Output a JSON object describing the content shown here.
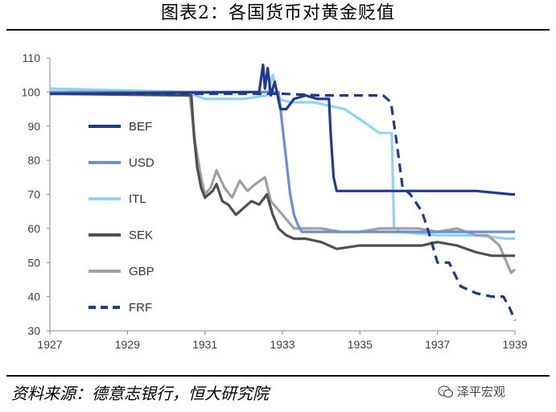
{
  "header": {
    "title": "图表2：各国货币对黄金贬值"
  },
  "footer": {
    "source": "资料来源：德意志银行，恒大研究院",
    "watermark": "泽平宏观"
  },
  "icons": {
    "watermark_icon": "wechat-icon"
  },
  "chart_data": {
    "type": "line",
    "xlim": [
      1927,
      1939
    ],
    "ylim": [
      30,
      110
    ],
    "xticks": [
      "1927",
      "1929",
      "1931",
      "1933",
      "1935",
      "1937",
      "1939"
    ],
    "yticks": [
      "30",
      "40",
      "50",
      "60",
      "70",
      "80",
      "90",
      "100",
      "110"
    ],
    "grid": false,
    "legend_position": "left",
    "series": [
      {
        "name": "BEF",
        "color": "#1F3A93",
        "dash": "solid",
        "x": [
          1927,
          1932.4,
          1932.5,
          1932.55,
          1932.62,
          1932.7,
          1932.8,
          1932.95,
          1933.1,
          1933.3,
          1933.6,
          1933.9,
          1934.2,
          1934.25,
          1934.32,
          1934.4,
          1935,
          1936,
          1937,
          1938,
          1938.9,
          1939
        ],
        "y": [
          99.5,
          100,
          108,
          101,
          107,
          99,
          103,
          95,
          95,
          98,
          99,
          98,
          98,
          87,
          75,
          71,
          71,
          71,
          71,
          71,
          70,
          70
        ]
      },
      {
        "name": "USD",
        "color": "#6B8EDB",
        "dash": "solid",
        "x": [
          1927,
          1932.9,
          1933.0,
          1933.1,
          1933.2,
          1933.3,
          1933.4,
          1933.5,
          1934,
          1936,
          1938,
          1939
        ],
        "y": [
          100,
          100,
          90,
          80,
          70,
          64,
          61,
          59,
          59,
          59,
          59,
          59
        ]
      },
      {
        "name": "ITL",
        "color": "#8FD4F2",
        "dash": "solid",
        "x": [
          1927,
          1930.5,
          1931,
          1932,
          1932.6,
          1932.75,
          1932.9,
          1933.2,
          1933.8,
          1934.2,
          1934.6,
          1935,
          1935.5,
          1935.82,
          1935.88,
          1935.95,
          1936,
          1937,
          1938,
          1938.8,
          1939
        ],
        "y": [
          101,
          100,
          98,
          98,
          99,
          105,
          98,
          97,
          97,
          96,
          95,
          92,
          88,
          88,
          60,
          60,
          59,
          58,
          58,
          57,
          57
        ]
      },
      {
        "name": "SEK",
        "color": "#505050",
        "dash": "solid",
        "x": [
          1927,
          1930.65,
          1930.72,
          1930.8,
          1930.9,
          1931,
          1931.2,
          1931.3,
          1931.45,
          1931.6,
          1931.8,
          1932,
          1932.2,
          1932.4,
          1932.6,
          1932.75,
          1932.9,
          1933.1,
          1933.3,
          1933.6,
          1934,
          1934.4,
          1935,
          1935.5,
          1936,
          1936.6,
          1937,
          1937.5,
          1938,
          1938.4,
          1939
        ],
        "y": [
          99.5,
          99,
          87,
          78,
          72,
          69,
          71,
          73,
          68,
          67,
          64,
          66,
          68,
          67,
          70,
          64,
          60,
          58,
          57,
          57,
          56,
          54,
          55,
          55,
          55,
          55,
          56,
          55,
          53,
          52,
          52
        ]
      },
      {
        "name": "GBP",
        "color": "#A0A0A0",
        "dash": "solid",
        "x": [
          1927,
          1930.6,
          1930.75,
          1930.9,
          1931.0,
          1931.15,
          1931.3,
          1931.5,
          1931.7,
          1931.9,
          1932.1,
          1932.3,
          1932.55,
          1932.7,
          1932.85,
          1933.0,
          1933.3,
          1933.6,
          1934,
          1934.5,
          1935,
          1935.5,
          1936,
          1936.5,
          1937,
          1937.5,
          1938,
          1938.3,
          1938.6,
          1938.9,
          1939
        ],
        "y": [
          100,
          100,
          85,
          75,
          70,
          72,
          77,
          72,
          69,
          74,
          71,
          73,
          75,
          68,
          66,
          64,
          60,
          60,
          60,
          59,
          59,
          60,
          60,
          60,
          59,
          60,
          58,
          58,
          55,
          47,
          48
        ]
      },
      {
        "name": "FRF",
        "color": "#1E3C8E",
        "dash": "dashed",
        "x": [
          1927,
          1933,
          1934,
          1934.5,
          1935,
          1935.6,
          1935.8,
          1935.95,
          1936.1,
          1936.3,
          1936.6,
          1936.8,
          1937.0,
          1937.3,
          1937.6,
          1938,
          1938.4,
          1938.7,
          1938.85,
          1939
        ],
        "y": [
          99.5,
          99.5,
          99,
          99,
          99,
          99,
          97,
          85,
          72,
          70,
          65,
          58,
          50,
          50,
          43,
          41,
          40,
          40,
          37,
          33
        ]
      }
    ]
  }
}
